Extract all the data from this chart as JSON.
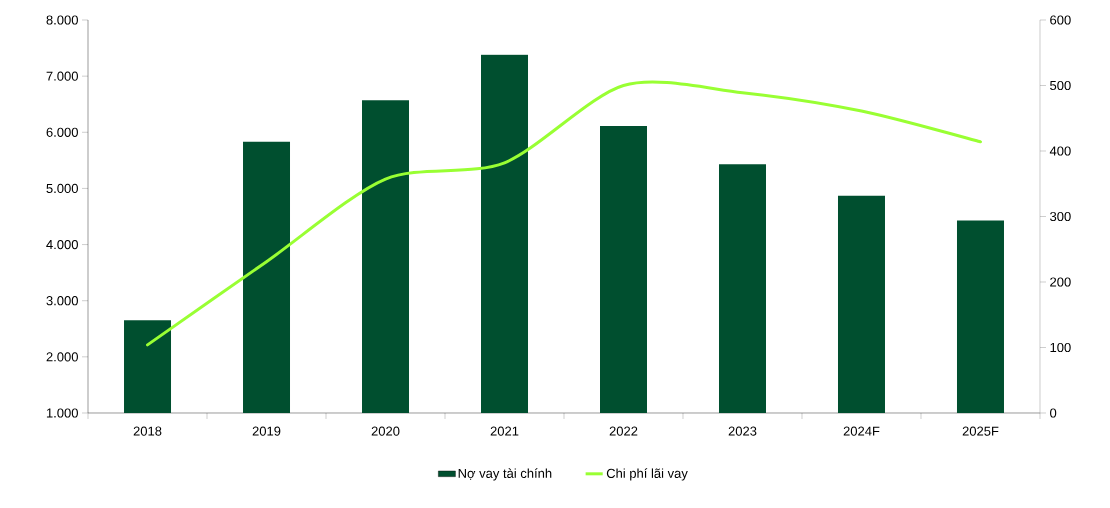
{
  "chart_data": {
    "type": "bar",
    "categories": [
      "2018",
      "2019",
      "2020",
      "2021",
      "2022",
      "2023",
      "2024F",
      "2025F"
    ],
    "series": [
      {
        "name": "Nợ vay tài chính",
        "color": "#004f2f",
        "values": [
          2650,
          5830,
          6570,
          7380,
          6110,
          5430,
          4870,
          4430
        ]
      },
      {
        "name": "Chi phí lãi vay",
        "type": "line",
        "axis": "y2",
        "color": "#99ff33",
        "values": [
          104,
          231,
          357,
          382,
          500,
          489,
          461,
          414
        ]
      }
    ],
    "ylim": [
      1000,
      8000
    ],
    "yticks": [
      {
        "value": 1000,
        "label": "1.000"
      },
      {
        "value": 2000,
        "label": "2.000"
      },
      {
        "value": 3000,
        "label": "3.000"
      },
      {
        "value": 4000,
        "label": "4.000"
      },
      {
        "value": 5000,
        "label": "5.000"
      },
      {
        "value": 6000,
        "label": "6.000"
      },
      {
        "value": 7000,
        "label": "7.000"
      },
      {
        "value": 8000,
        "label": "8.000"
      }
    ],
    "y2lim": [
      0,
      600
    ],
    "y2ticks": [
      0,
      100,
      200,
      300,
      400,
      500,
      600
    ],
    "legend": "bottom",
    "marker": "none"
  }
}
